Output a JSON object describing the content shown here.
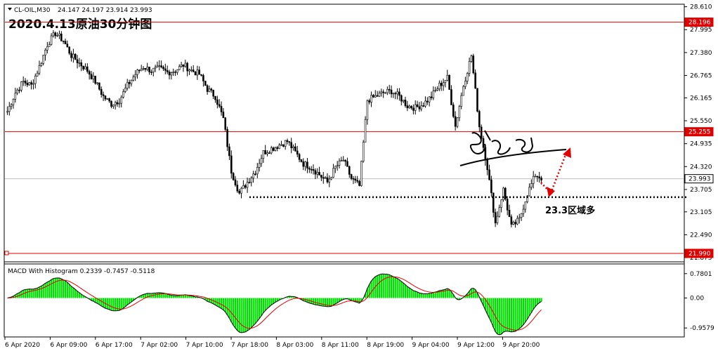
{
  "header": {
    "symbol_label": "CL-OIL,M30",
    "ohlc": "24.147 24.197 23.914 23.993",
    "title": "2020.4.13原油30分钟图"
  },
  "annotation": {
    "level_note": "23.3区域多"
  },
  "macd": {
    "label": "MACD With Histogram 0.2339 -0.7457 -0.5118",
    "ticks": [
      "0.7801",
      "0.00",
      "-0.9579"
    ],
    "tick_values": [
      0.7801,
      0.0,
      -0.9579
    ]
  },
  "chart_data": {
    "type": "candlestick",
    "y_ticks": [
      "28.610",
      "27.995",
      "27.380",
      "26.765",
      "26.165",
      "25.550",
      "24.935",
      "24.320",
      "23.705",
      "23.105",
      "22.490",
      "21.875"
    ],
    "y_tick_values": [
      28.61,
      27.995,
      27.38,
      26.765,
      26.165,
      25.55,
      24.935,
      24.32,
      23.705,
      23.105,
      22.49,
      21.875
    ],
    "ylim": [
      21.82,
      28.64
    ],
    "x_ticks": [
      "6 Apr 2020",
      "6 Apr 09:00",
      "6 Apr 17:00",
      "7 Apr 02:00",
      "7 Apr 10:00",
      "7 Apr 18:00",
      "8 Apr 03:00",
      "8 Apr 11:00",
      "8 Apr 19:00",
      "9 Apr 04:00",
      "9 Apr 12:00",
      "9 Apr 20:00"
    ],
    "horizontal_levels": [
      {
        "label": "28.196",
        "value": 28.196,
        "color": "#e00000"
      },
      {
        "label": "25.255",
        "value": 25.255,
        "color": "#e00000"
      },
      {
        "label": "23.993",
        "value": 23.993,
        "color": "#c0c0c0"
      },
      {
        "label": "21.990",
        "value": 21.99,
        "color": "#e00000"
      }
    ],
    "support_level": 23.5,
    "close_path": [
      25.8,
      26.3,
      26.6,
      26.5,
      27.0,
      27.6,
      27.9,
      27.7,
      27.3,
      27.1,
      26.9,
      26.6,
      26.2,
      26.0,
      26.1,
      26.5,
      26.8,
      27.0,
      26.9,
      26.95,
      26.85,
      26.9,
      27.05,
      26.9,
      26.8,
      26.4,
      26.2,
      25.6,
      24.2,
      23.6,
      23.9,
      24.2,
      24.7,
      24.8,
      24.9,
      25.0,
      24.7,
      24.4,
      24.3,
      24.1,
      23.9,
      24.3,
      24.5,
      24.0,
      23.8,
      26.1,
      26.2,
      26.3,
      26.35,
      26.2,
      25.95,
      25.9,
      26.0,
      26.2,
      26.5,
      26.7,
      25.4,
      26.5,
      27.3,
      25.4,
      24.3,
      22.8,
      23.7,
      22.7,
      22.9,
      23.6,
      24.1,
      23.99
    ],
    "candles_per_segment": 4,
    "up_color": "#000000",
    "down_color": "#000000"
  }
}
